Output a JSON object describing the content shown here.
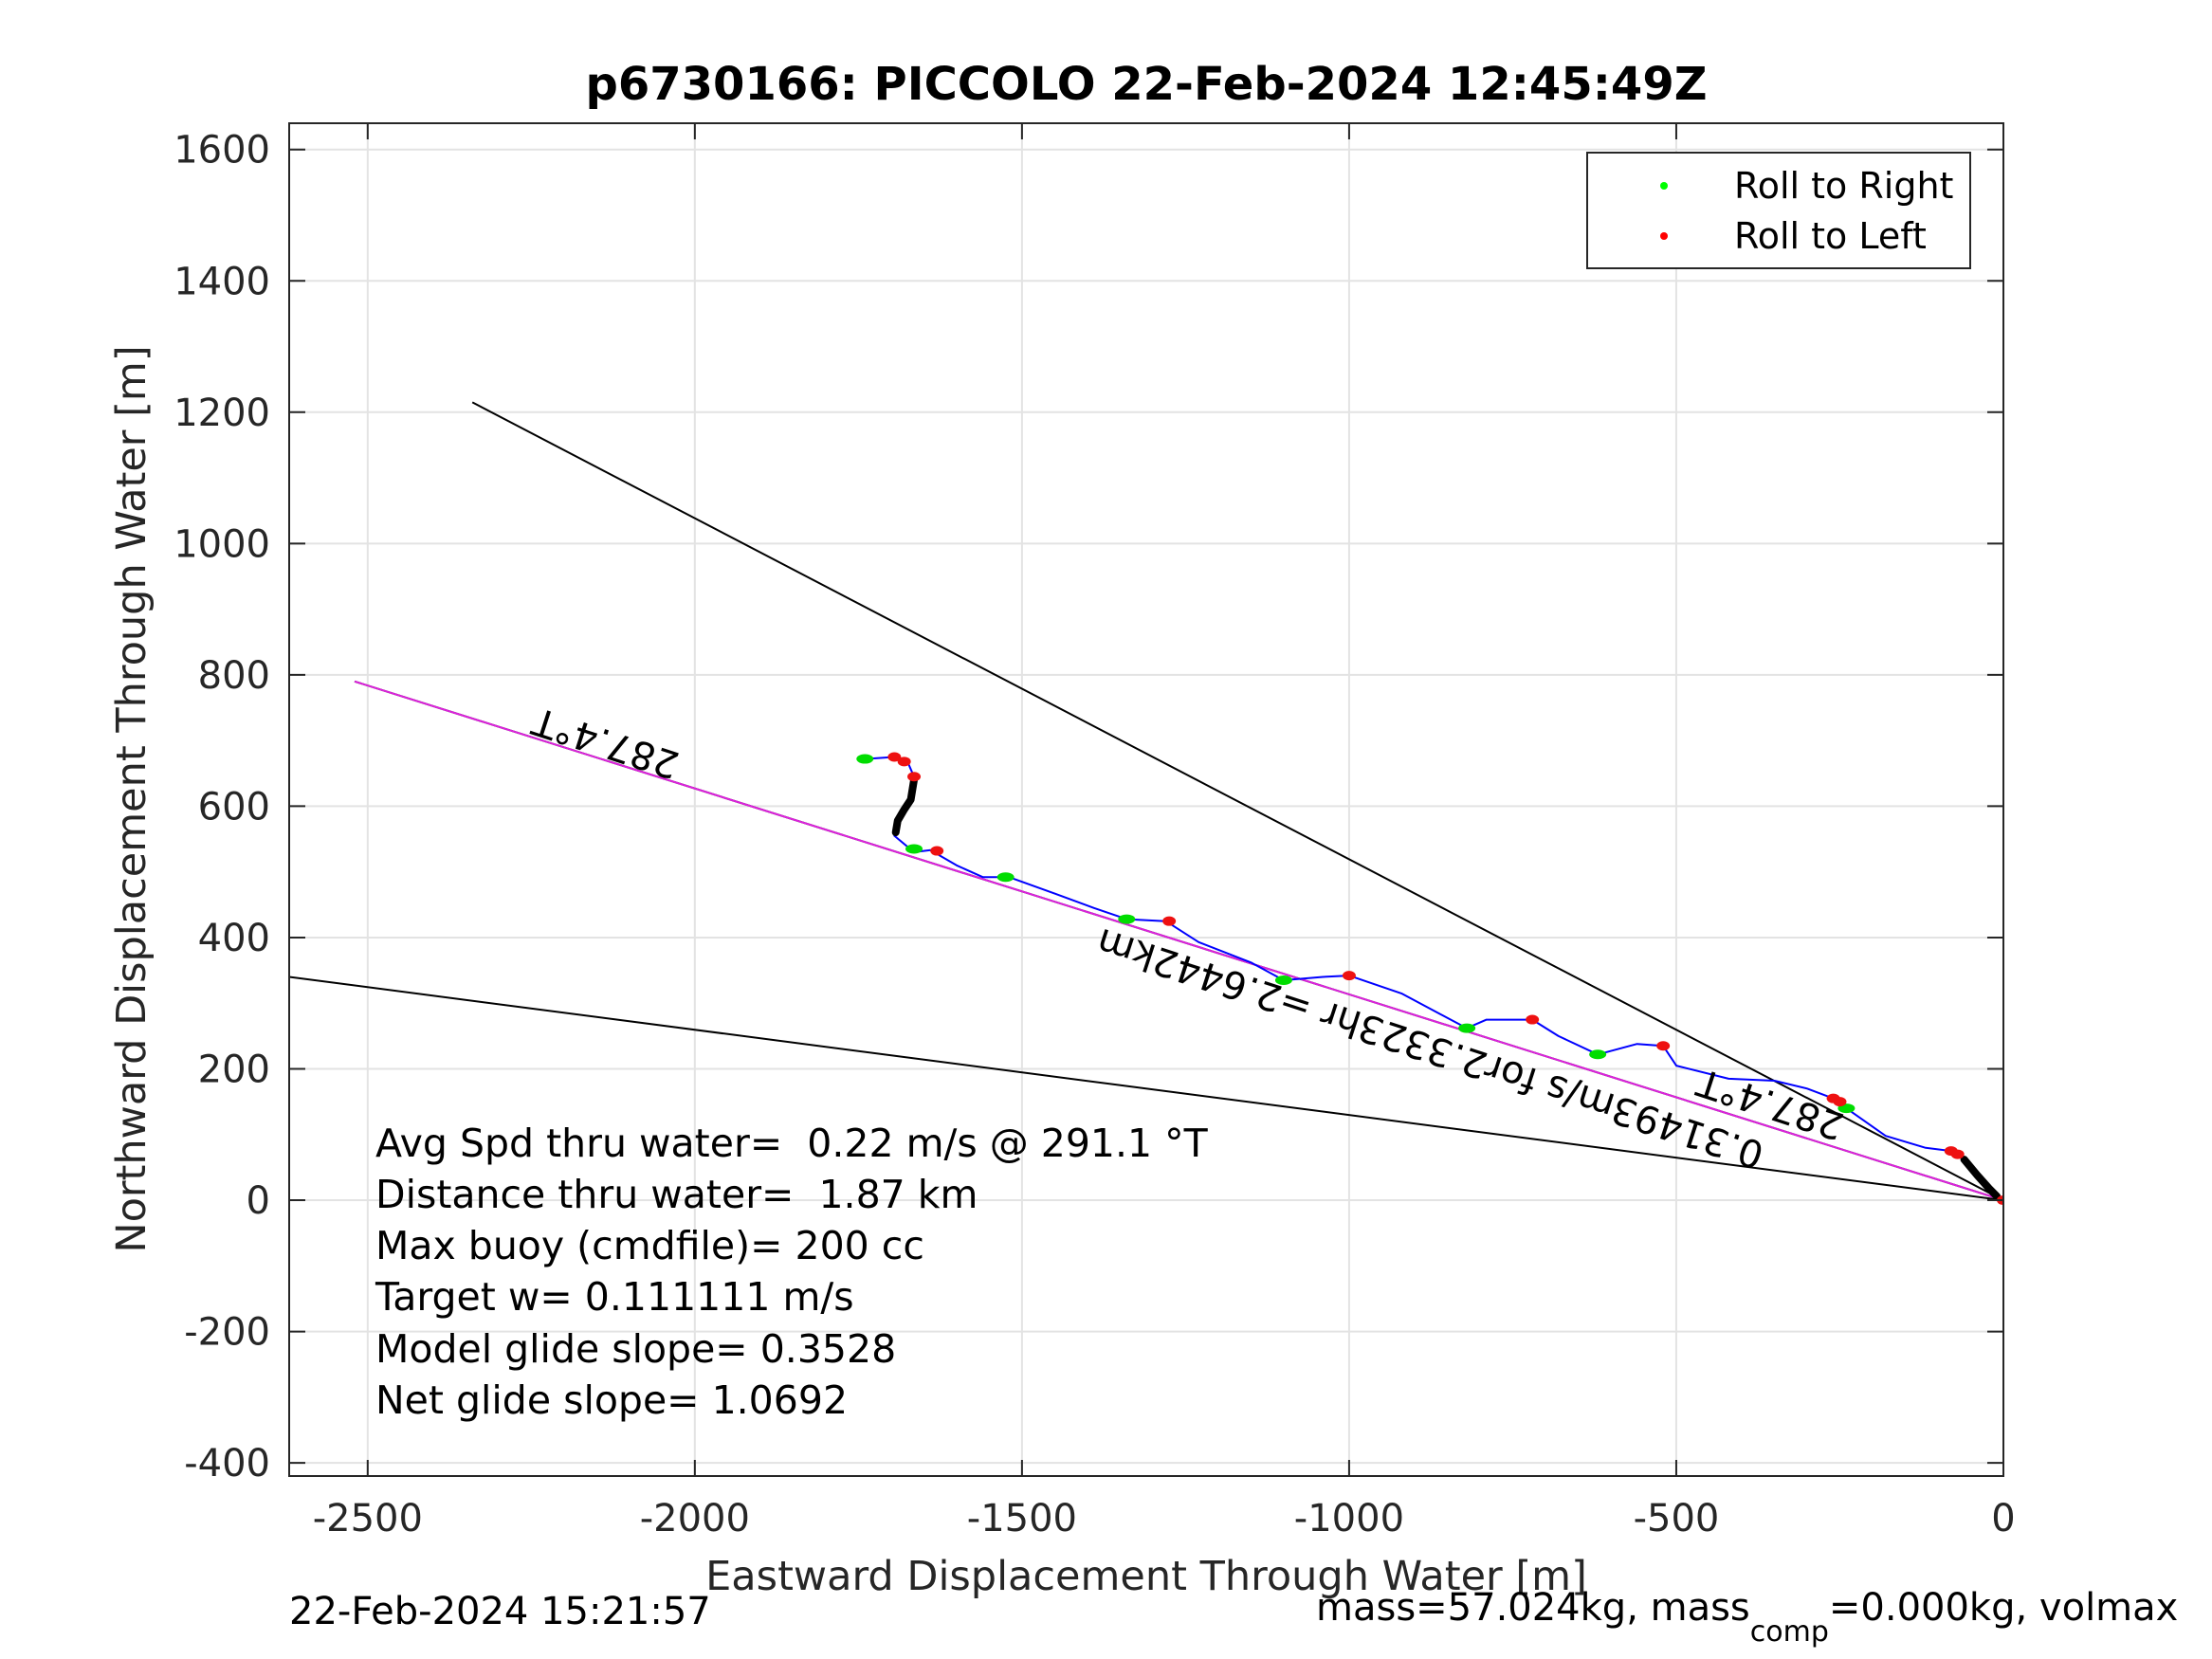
{
  "chart_data": {
    "type": "line",
    "title": "p6730166: PICCOLO 22-Feb-2024 12:45:49Z",
    "xlabel": "Eastward Displacement Through Water [m]",
    "ylabel": "Northward Displacement Through Water [m]",
    "xlim": [
      -2620,
      0
    ],
    "ylim": [
      -420,
      1640
    ],
    "xticks": [
      -2500,
      -2000,
      -1500,
      -1000,
      -500,
      0
    ],
    "yticks": [
      -400,
      -200,
      0,
      200,
      400,
      600,
      800,
      1000,
      1200,
      1400,
      1600
    ],
    "grid": true,
    "legend": {
      "position": "top-right",
      "entries": [
        {
          "label": "Roll to Right",
          "color": "#00ff00"
        },
        {
          "label": "Roll to Left",
          "color": "#ff0000"
        }
      ]
    },
    "reference_lines": [
      {
        "color": "#000000",
        "points": [
          [
            0,
            0
          ],
          [
            -2340,
            1215
          ]
        ]
      },
      {
        "color": "#000000",
        "points": [
          [
            0,
            0
          ],
          [
            -2620,
            340
          ]
        ]
      },
      {
        "color": "#000000",
        "points": [
          [
            0,
            0
          ],
          [
            -2520,
            790
          ]
        ]
      },
      {
        "color": "#dd22dd",
        "points": [
          [
            0,
            0
          ],
          [
            -2520,
            790
          ]
        ]
      }
    ],
    "track": {
      "color": "#0000ff",
      "points": [
        [
          0,
          0
        ],
        [
          -20,
          10
        ],
        [
          -40,
          40
        ],
        [
          -60,
          62
        ],
        [
          -80,
          75
        ],
        [
          -120,
          80
        ],
        [
          -180,
          98
        ],
        [
          -240,
          140
        ],
        [
          -260,
          155
        ],
        [
          -300,
          170
        ],
        [
          -350,
          182
        ],
        [
          -420,
          185
        ],
        [
          -500,
          205
        ],
        [
          -520,
          235
        ],
        [
          -560,
          238
        ],
        [
          -620,
          222
        ],
        [
          -680,
          250
        ],
        [
          -720,
          275
        ],
        [
          -790,
          275
        ],
        [
          -820,
          262
        ],
        [
          -860,
          283
        ],
        [
          -920,
          315
        ],
        [
          -1000,
          342
        ],
        [
          -1040,
          340
        ],
        [
          -1100,
          335
        ],
        [
          -1150,
          362
        ],
        [
          -1230,
          393
        ],
        [
          -1280,
          425
        ],
        [
          -1340,
          428
        ],
        [
          -1390,
          445
        ],
        [
          -1450,
          467
        ],
        [
          -1520,
          492
        ],
        [
          -1560,
          492
        ],
        [
          -1600,
          510
        ],
        [
          -1640,
          533
        ],
        [
          -1665,
          530
        ],
        [
          -1695,
          555
        ],
        [
          -1690,
          575
        ],
        [
          -1675,
          605
        ],
        [
          -1665,
          645
        ],
        [
          -1675,
          668
        ],
        [
          -1695,
          675
        ],
        [
          -1740,
          672
        ]
      ]
    },
    "roll_right": [
      [
        -1740,
        672
      ],
      [
        -1665,
        535
      ],
      [
        -1525,
        492
      ],
      [
        -1340,
        428
      ],
      [
        -1100,
        335
      ],
      [
        -820,
        262
      ],
      [
        -620,
        222
      ],
      [
        -240,
        140
      ]
    ],
    "roll_left": [
      [
        -1695,
        675
      ],
      [
        -1680,
        668
      ],
      [
        -1665,
        645
      ],
      [
        -1630,
        532
      ],
      [
        -1275,
        425
      ],
      [
        -1000,
        342
      ],
      [
        -720,
        275
      ],
      [
        -520,
        235
      ],
      [
        -260,
        155
      ],
      [
        -250,
        150
      ],
      [
        -80,
        75
      ],
      [
        -70,
        70
      ],
      [
        0,
        0
      ]
    ],
    "thick_segments": [
      [
        [
          -60,
          62
        ],
        [
          -40,
          38
        ],
        [
          -22,
          18
        ],
        [
          -10,
          6
        ]
      ],
      [
        [
          -1665,
          640
        ],
        [
          -1670,
          610
        ],
        [
          -1680,
          595
        ],
        [
          -1690,
          578
        ],
        [
          -1693,
          560
        ]
      ]
    ],
    "annotations": [
      {
        "text": "287.4°T",
        "at": [
          -2130,
          715
        ],
        "rotate": 198
      },
      {
        "text": "287.4°T",
        "at": [
          -350,
          165
        ],
        "rotate": 198
      },
      {
        "text": "0.31493m/s for2.3323hr =2.6442km",
        "at": [
          -870,
          250
        ],
        "rotate": 198
      }
    ]
  },
  "stats": [
    "Avg Spd thru water=  0.22 m/s @ 291.1 °T",
    "Distance thru water=  1.87 km",
    "Max buoy (cmdfile)= 200 cc",
    "Target w= 0.111111 m/s",
    "Model glide slope= 0.3528",
    "Net glide slope= 1.0692"
  ],
  "footer": {
    "timestamp": "22-Feb-2024 15:21:57",
    "mass_prefix": "mass=57.024kg, mass",
    "mass_sub": "comp",
    "mass_suffix": "=0.000kg, volmax"
  }
}
